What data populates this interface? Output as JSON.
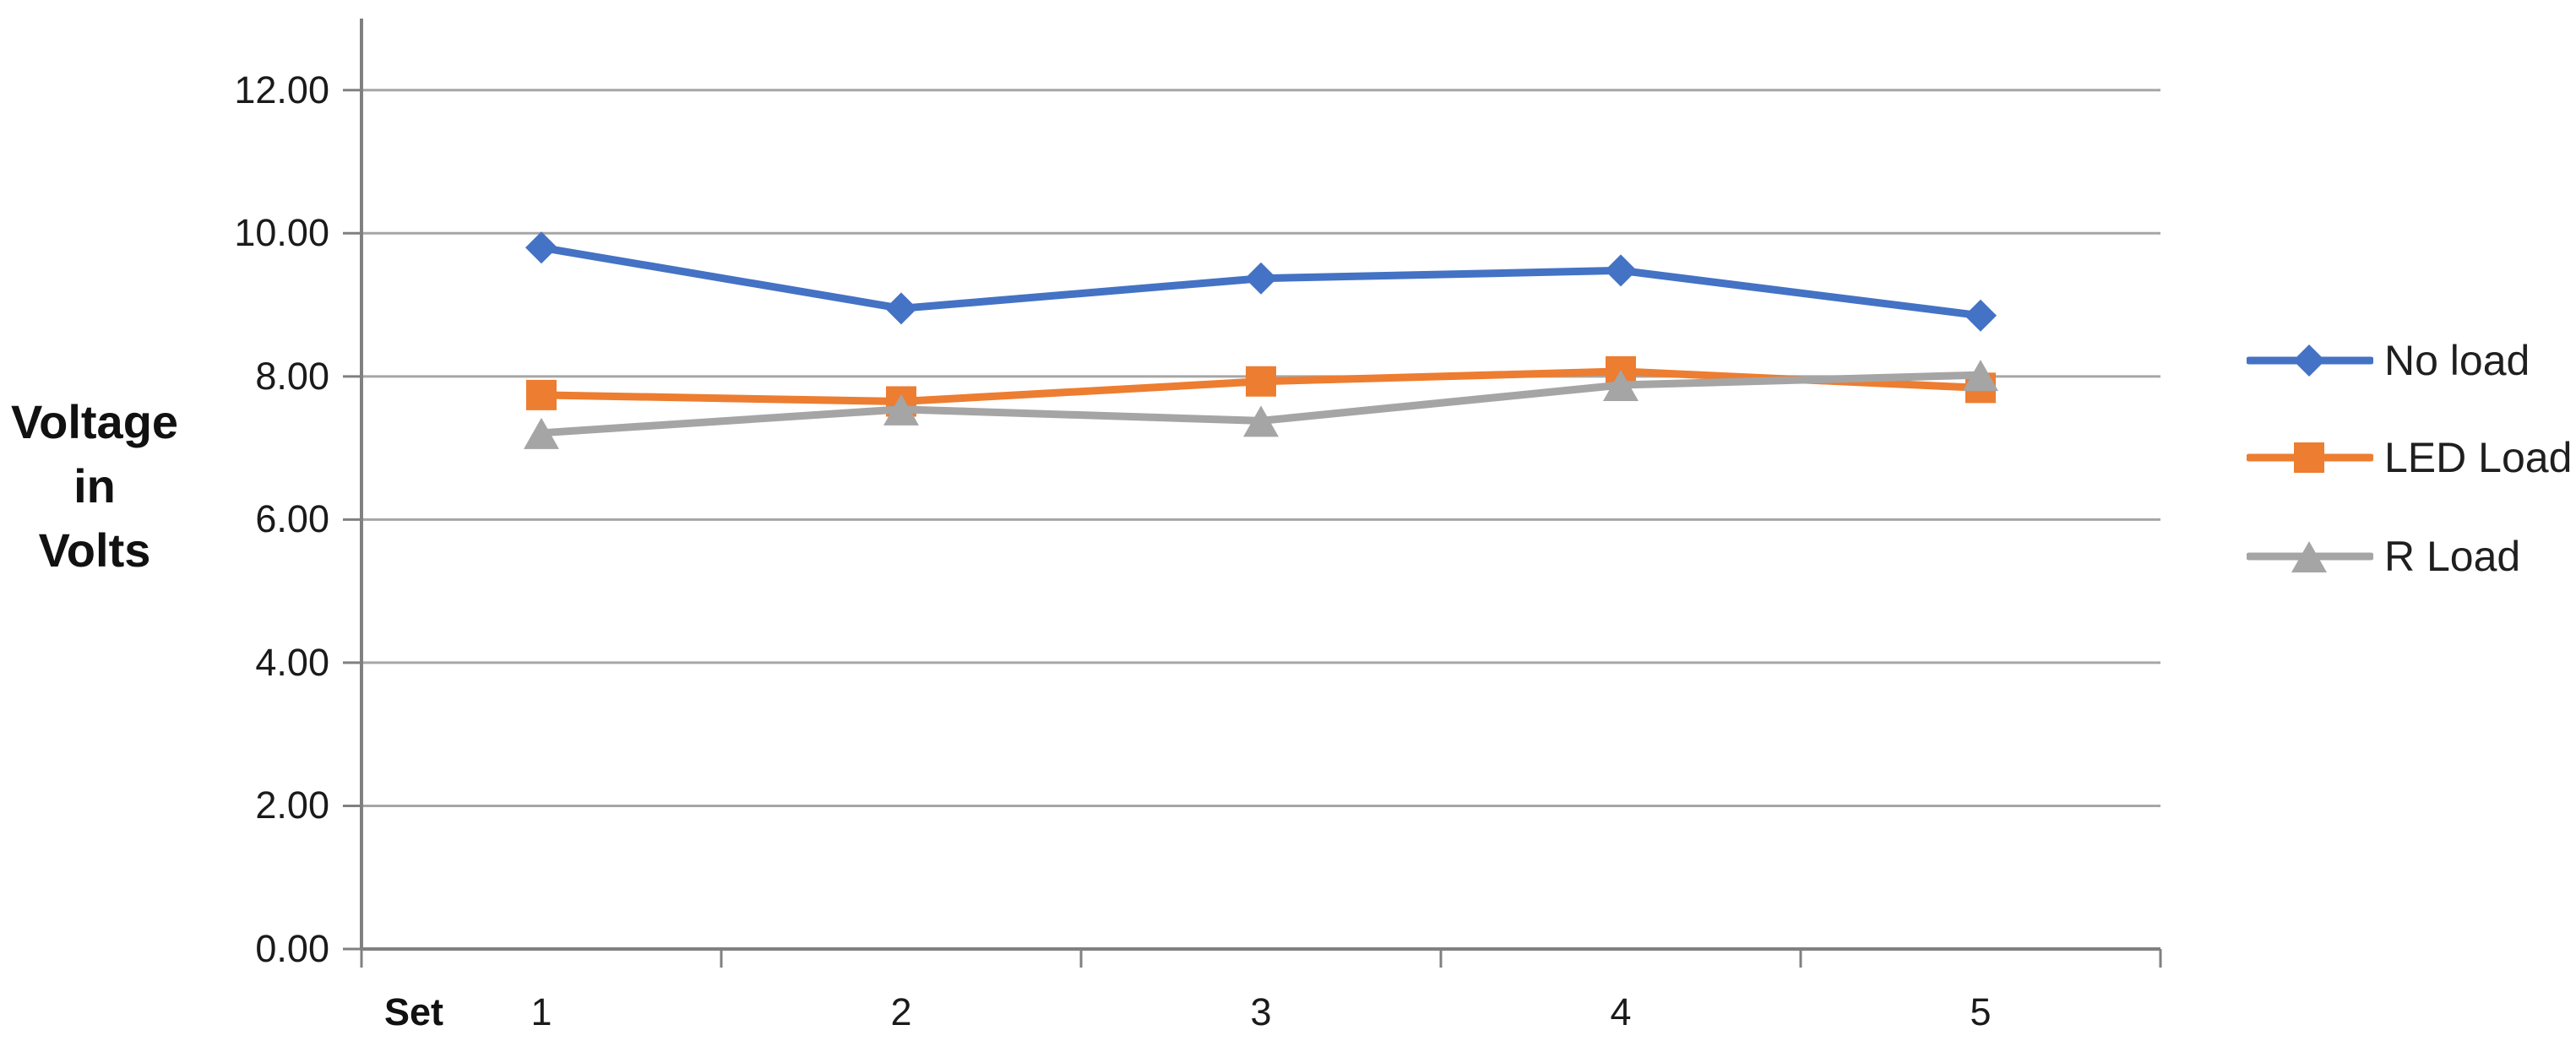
{
  "chart_data": {
    "type": "line",
    "title": "",
    "x_axis_prefix": "Set",
    "categories": [
      "1",
      "2",
      "3",
      "4",
      "5"
    ],
    "series": [
      {
        "name": "No load",
        "marker": "diamond",
        "color": "#4472C4",
        "values": [
          9.8,
          8.95,
          9.37,
          9.48,
          8.85
        ]
      },
      {
        "name": "LED Load",
        "marker": "square",
        "color": "#ED7D31",
        "values": [
          7.74,
          7.65,
          7.93,
          8.07,
          7.84
        ]
      },
      {
        "name": "R Load",
        "marker": "triangle",
        "color": "#A5A5A5",
        "values": [
          7.21,
          7.54,
          7.38,
          7.88,
          8.02
        ]
      }
    ],
    "ylabel_lines": [
      "Voltage",
      "in",
      "Volts"
    ],
    "xlabel": "",
    "ylim": [
      0,
      13
    ],
    "y_ticks": [
      0,
      2,
      4,
      6,
      8,
      10,
      12
    ],
    "y_tick_labels": [
      "0.00",
      "2.00",
      "4.00",
      "6.00",
      "8.00",
      "10.00",
      "12.00"
    ],
    "grid": true,
    "legend_position": "right",
    "colors": {
      "gridline": "#A6A6A6",
      "axis": "#808080",
      "text": "#1a1a1a"
    }
  }
}
